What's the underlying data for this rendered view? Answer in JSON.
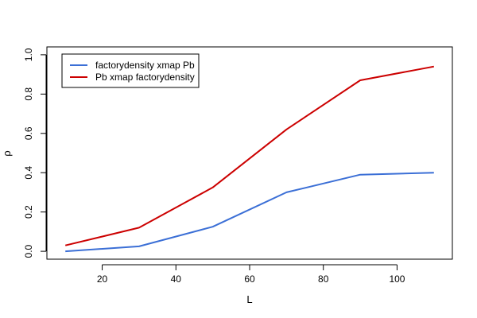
{
  "chart_data": {
    "type": "line",
    "xlabel": "L",
    "ylabel": "ρ",
    "xlim": [
      5,
      115
    ],
    "ylim": [
      -0.04,
      1.04
    ],
    "xticks": [
      20,
      40,
      60,
      80,
      100
    ],
    "yticks": [
      0.0,
      0.2,
      0.4,
      0.6,
      0.8,
      1.0
    ],
    "xtick_labels": [
      "20",
      "40",
      "60",
      "80",
      "100"
    ],
    "ytick_labels": [
      "0.0",
      "0.2",
      "0.4",
      "0.6",
      "0.8",
      "1.0"
    ],
    "x": [
      10,
      30,
      50,
      70,
      90,
      110
    ],
    "series": [
      {
        "name": "factorydensity xmap Pb",
        "color": "#3b6fd6",
        "values": [
          0.0,
          0.025,
          0.125,
          0.3,
          0.39,
          0.4
        ]
      },
      {
        "name": "Pb xmap factorydensity",
        "color": "#cc0000",
        "values": [
          0.03,
          0.12,
          0.325,
          0.62,
          0.87,
          0.94
        ]
      }
    ],
    "legend": {
      "position": "top-left"
    },
    "grid": false
  }
}
